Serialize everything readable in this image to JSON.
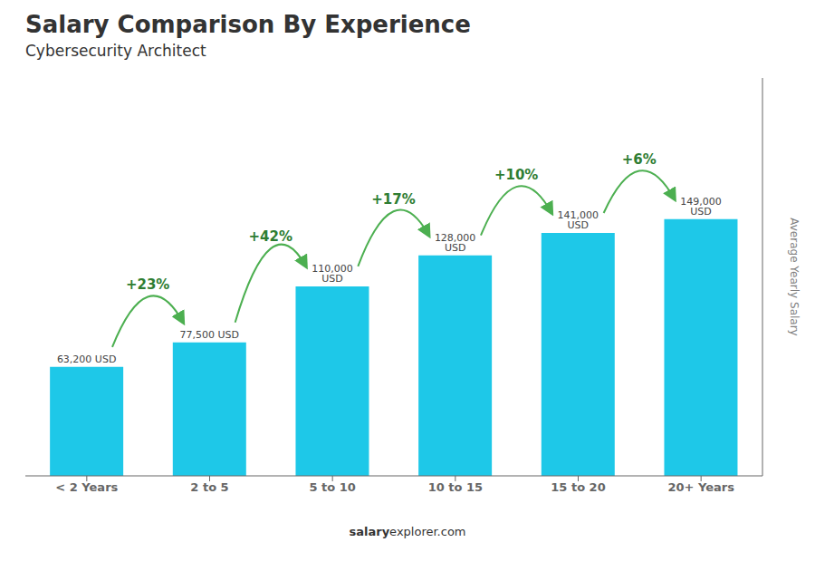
{
  "chart_data": {
    "type": "bar",
    "title": "Salary Comparison By Experience",
    "subtitle": "Cybersecurity Architect",
    "y_label": "Average Yearly Salary",
    "categories": [
      "< 2 Years",
      "2 to 5",
      "5 to 10",
      "10 to 15",
      "15 to 20",
      "20+ Years"
    ],
    "values": [
      63200,
      77500,
      110000,
      128000,
      141000,
      149000
    ],
    "value_labels": [
      "63,200 USD",
      "77,500 USD",
      "110,000 USD",
      "128,000 USD",
      "141,000 USD",
      "149,000 USD"
    ],
    "data_labels": true,
    "annotations": [
      "+23%",
      "+42%",
      "+17%",
      "+10%",
      "+6%"
    ],
    "footer": [
      "salary",
      "explorer.com"
    ],
    "color": "#1EC8E8",
    "ylim": [
      0,
      230950
    ],
    "grid": false,
    "tick_labels": "x"
  }
}
